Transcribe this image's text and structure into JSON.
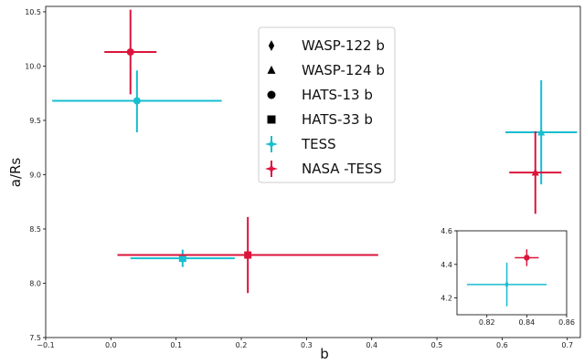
{
  "chart_data": [
    {
      "type": "scatter",
      "xlabel": "b",
      "ylabel": "a/Rs",
      "xlim": [
        -0.1,
        0.72
      ],
      "ylim": [
        7.5,
        10.55
      ],
      "xticks": [
        "−0.1",
        "0.0",
        "0.1",
        "0.2",
        "0.3",
        "0.4",
        "0.5",
        "0.6",
        "0.7"
      ],
      "xtick_values": [
        -0.1,
        0.0,
        0.1,
        0.2,
        0.3,
        0.4,
        0.5,
        0.6,
        0.7
      ],
      "yticks": [
        "7.5",
        "8.0",
        "8.5",
        "9.0",
        "9.5",
        "10.0",
        "10.5"
      ],
      "ytick_values": [
        7.5,
        8.0,
        8.5,
        9.0,
        9.5,
        10.0,
        10.5
      ],
      "grid": false,
      "legend": {
        "placement": "top-center",
        "entries": [
          {
            "label": "WASP-122 b",
            "marker": "diamond",
            "color": "#000000"
          },
          {
            "label": "WASP-124 b",
            "marker": "triangle",
            "color": "#000000"
          },
          {
            "label": "HATS-13 b",
            "marker": "circle",
            "color": "#000000"
          },
          {
            "label": "HATS-33 b",
            "marker": "square",
            "color": "#000000"
          },
          {
            "label": "TESS",
            "marker": "star",
            "color": "#17becf"
          },
          {
            "label": "NASA -TESS",
            "marker": "star",
            "color": "#dc143c"
          }
        ]
      },
      "series": [
        {
          "name": "TESS",
          "color": "#17becf",
          "points": [
            {
              "planet": "HATS-13 b",
              "marker": "circle",
              "x": 0.04,
              "y": 9.68,
              "xerr": [
                0.13,
                0.13
              ],
              "yerr": [
                0.29,
                0.28
              ]
            },
            {
              "planet": "HATS-33 b",
              "marker": "square",
              "x": 0.11,
              "y": 8.23,
              "xerr": [
                0.08,
                0.08
              ],
              "yerr": [
                0.08,
                0.08
              ]
            },
            {
              "planet": "WASP-124 b",
              "marker": "triangle",
              "x": 0.66,
              "y": 9.39,
              "xerr": [
                0.055,
                0.055
              ],
              "yerr": [
                0.48,
                0.48
              ]
            }
          ]
        },
        {
          "name": "NASA -TESS",
          "color": "#dc143c",
          "points": [
            {
              "planet": "HATS-13 b",
              "marker": "circle",
              "x": 0.03,
              "y": 10.13,
              "xerr": [
                0.04,
                0.04
              ],
              "yerr": [
                0.39,
                0.39
              ]
            },
            {
              "planet": "HATS-33 b",
              "marker": "square",
              "x": 0.21,
              "y": 8.26,
              "xerr": [
                0.2,
                0.2
              ],
              "yerr": [
                0.35,
                0.35
              ]
            },
            {
              "planet": "WASP-124 b",
              "marker": "triangle",
              "x": 0.651,
              "y": 9.02,
              "xerr": [
                0.04,
                0.04
              ],
              "yerr": [
                0.38,
                0.38
              ]
            }
          ]
        }
      ]
    },
    {
      "type": "scatter",
      "role": "inset",
      "xlim": [
        0.805,
        0.86
      ],
      "ylim": [
        4.1,
        4.6
      ],
      "xticks": [
        "0.82",
        "0.84",
        "0.86"
      ],
      "xtick_values": [
        0.82,
        0.84,
        0.86
      ],
      "yticks": [
        "4.2",
        "4.4",
        "4.6"
      ],
      "ytick_values": [
        4.2,
        4.4,
        4.6
      ],
      "series": [
        {
          "name": "TESS",
          "color": "#17becf",
          "points": [
            {
              "planet": "WASP-122 b",
              "marker": "diamond",
              "x": 0.83,
              "y": 4.28,
              "xerr": [
                0.02,
                0.02
              ],
              "yerr": [
                0.13,
                0.13
              ]
            }
          ]
        },
        {
          "name": "NASA -TESS",
          "color": "#dc143c",
          "points": [
            {
              "planet": "WASP-122 b",
              "marker": "circle",
              "x": 0.84,
              "y": 4.44,
              "xerr": [
                0.006,
                0.006
              ],
              "yerr": [
                0.05,
                0.05
              ]
            }
          ]
        }
      ]
    }
  ]
}
